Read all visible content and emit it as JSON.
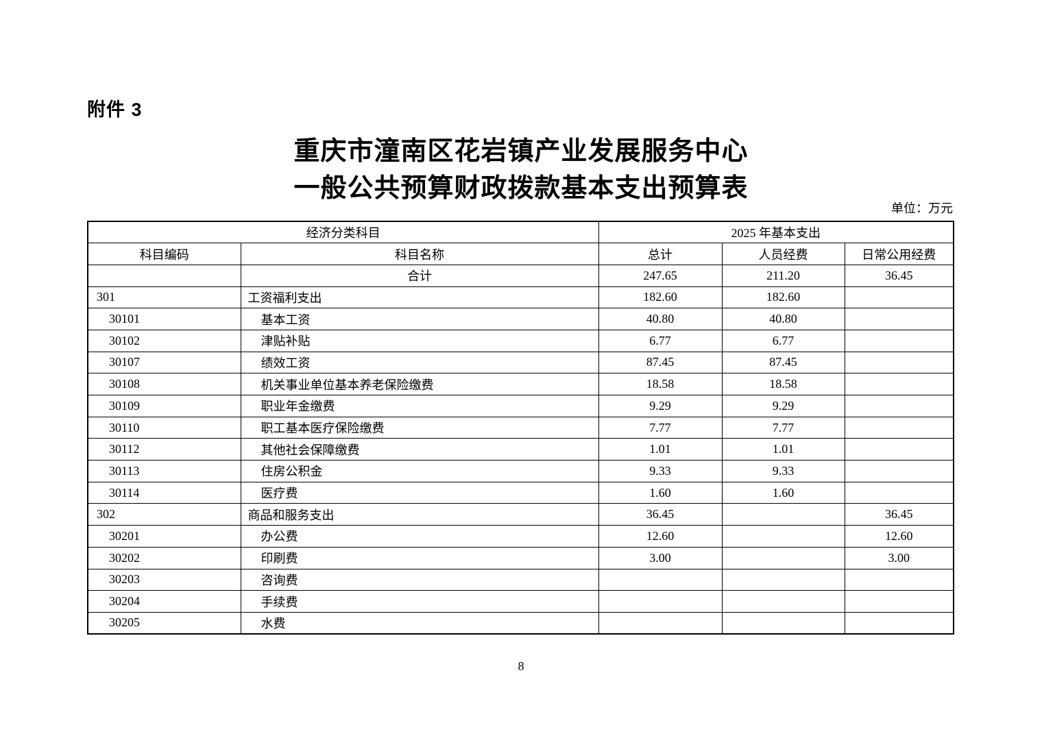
{
  "page": {
    "attachment_label": "附件 3",
    "title_line1": "重庆市潼南区花岩镇产业发展服务中心",
    "title_line2": "一般公共预算财政拨款基本支出预算表",
    "unit_note": "单位：万元",
    "page_number": "8"
  },
  "table": {
    "header": {
      "group_economic_classification": "经济分类科目",
      "group_2025_basic_expenditure": "2025 年基本支出",
      "col_code": "科目编码",
      "col_name": "科目名称",
      "col_total": "总计",
      "col_personnel": "人员经费",
      "col_daily": "日常公用经费"
    },
    "rows": [
      {
        "code": "",
        "name": "合计",
        "total": "247.65",
        "personnel": "211.20",
        "daily": "36.45",
        "level": "total"
      },
      {
        "code": "301",
        "name": "工资福利支出",
        "total": "182.60",
        "personnel": "182.60",
        "daily": "",
        "level": "1"
      },
      {
        "code": "30101",
        "name": "基本工资",
        "total": "40.80",
        "personnel": "40.80",
        "daily": "",
        "level": "2"
      },
      {
        "code": "30102",
        "name": "津贴补贴",
        "total": "6.77",
        "personnel": "6.77",
        "daily": "",
        "level": "2"
      },
      {
        "code": "30107",
        "name": "绩效工资",
        "total": "87.45",
        "personnel": "87.45",
        "daily": "",
        "level": "2"
      },
      {
        "code": "30108",
        "name": "机关事业单位基本养老保险缴费",
        "total": "18.58",
        "personnel": "18.58",
        "daily": "",
        "level": "2"
      },
      {
        "code": "30109",
        "name": "职业年金缴费",
        "total": "9.29",
        "personnel": "9.29",
        "daily": "",
        "level": "2"
      },
      {
        "code": "30110",
        "name": "职工基本医疗保险缴费",
        "total": "7.77",
        "personnel": "7.77",
        "daily": "",
        "level": "2"
      },
      {
        "code": "30112",
        "name": "其他社会保障缴费",
        "total": "1.01",
        "personnel": "1.01",
        "daily": "",
        "level": "2"
      },
      {
        "code": "30113",
        "name": "住房公积金",
        "total": "9.33",
        "personnel": "9.33",
        "daily": "",
        "level": "2"
      },
      {
        "code": "30114",
        "name": "医疗费",
        "total": "1.60",
        "personnel": "1.60",
        "daily": "",
        "level": "2"
      },
      {
        "code": "302",
        "name": "商品和服务支出",
        "total": "36.45",
        "personnel": "",
        "daily": "36.45",
        "level": "1"
      },
      {
        "code": "30201",
        "name": "办公费",
        "total": "12.60",
        "personnel": "",
        "daily": "12.60",
        "level": "2"
      },
      {
        "code": "30202",
        "name": "印刷费",
        "total": "3.00",
        "personnel": "",
        "daily": "3.00",
        "level": "2"
      },
      {
        "code": "30203",
        "name": "咨询费",
        "total": "",
        "personnel": "",
        "daily": "",
        "level": "2"
      },
      {
        "code": "30204",
        "name": "手续费",
        "total": "",
        "personnel": "",
        "daily": "",
        "level": "2"
      },
      {
        "code": "30205",
        "name": "水费",
        "total": "",
        "personnel": "",
        "daily": "",
        "level": "2"
      }
    ]
  }
}
